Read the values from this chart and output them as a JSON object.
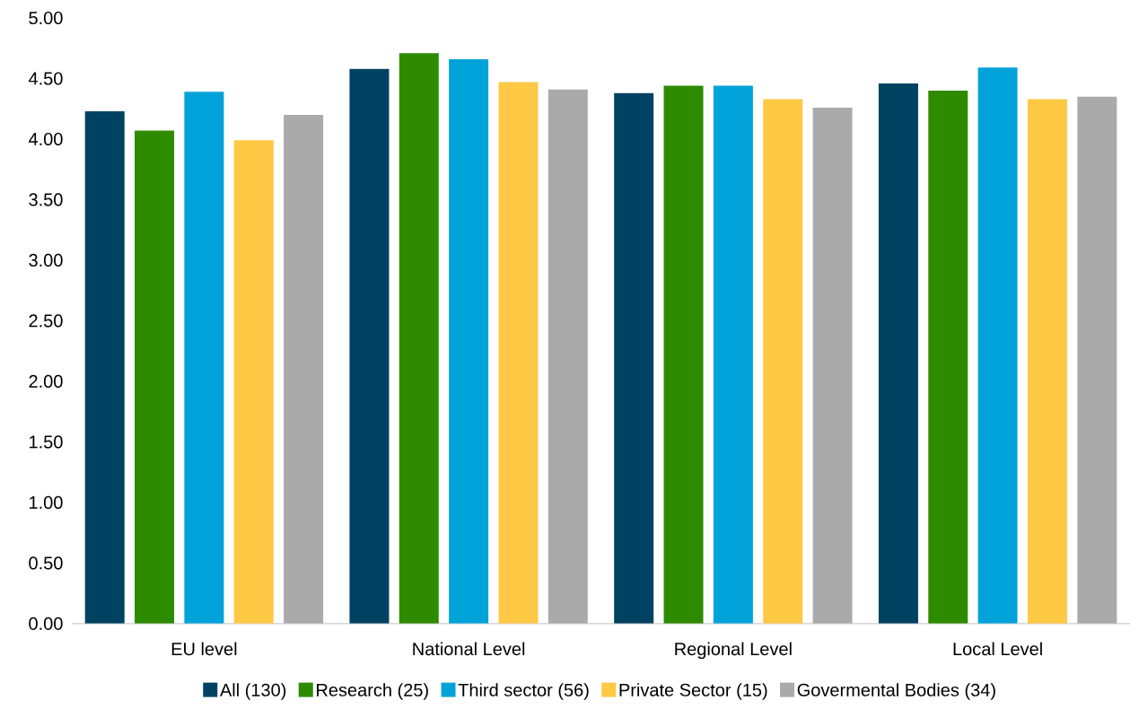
{
  "chart_data": {
    "type": "bar",
    "categories": [
      "EU level",
      "National Level",
      "Regional Level",
      "Local Level"
    ],
    "series": [
      {
        "name": "All (130)",
        "color": "#004261",
        "values": [
          4.23,
          4.58,
          4.38,
          4.46
        ]
      },
      {
        "name": "Research (25)",
        "color": "#2e8b00",
        "values": [
          4.07,
          4.71,
          4.44,
          4.4
        ]
      },
      {
        "name": "Third sector (56)",
        "color": "#00a3d9",
        "values": [
          4.39,
          4.66,
          4.44,
          4.59
        ]
      },
      {
        "name": "Private Sector (15)",
        "color": "#ffc845",
        "values": [
          3.99,
          4.47,
          4.33,
          4.33
        ]
      },
      {
        "name": "Govermental Bodies (34)",
        "color": "#aaaaaa",
        "values": [
          4.2,
          4.41,
          4.26,
          4.35
        ]
      }
    ],
    "ylim": [
      0,
      5
    ],
    "yticks": [
      {
        "value": 0,
        "label": "0.00"
      },
      {
        "value": 0.5,
        "label": "0.50"
      },
      {
        "value": 1,
        "label": "1.00"
      },
      {
        "value": 1.5,
        "label": "1.50"
      },
      {
        "value": 2,
        "label": "2.00"
      },
      {
        "value": 2.5,
        "label": "2.50"
      },
      {
        "value": 3,
        "label": "3.00"
      },
      {
        "value": 3.5,
        "label": "3.50"
      },
      {
        "value": 4,
        "label": "4.00"
      },
      {
        "value": 4.5,
        "label": "4.50"
      },
      {
        "value": 5,
        "label": "5.00"
      }
    ],
    "legend": "bottom"
  }
}
